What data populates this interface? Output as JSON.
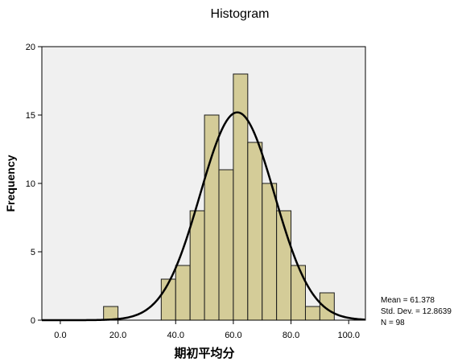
{
  "chart_data": {
    "type": "bar",
    "title": "Histogram",
    "xlabel": "期初平均分",
    "ylabel": "Frequency",
    "xlim": [
      -6.4,
      105.8
    ],
    "ylim": [
      0,
      20
    ],
    "xticks": [
      "0.0",
      "20.0",
      "40.0",
      "60.0",
      "80.0",
      "100.0"
    ],
    "xtick_values": [
      0,
      20,
      40,
      60,
      80,
      100
    ],
    "yticks": [
      "0",
      "5",
      "10",
      "15",
      "20"
    ],
    "ytick_values": [
      0,
      5,
      10,
      15,
      20
    ],
    "bins": [
      {
        "start": 15,
        "end": 20,
        "count": 1
      },
      {
        "start": 35,
        "end": 40,
        "count": 3
      },
      {
        "start": 40,
        "end": 45,
        "count": 4
      },
      {
        "start": 45,
        "end": 50,
        "count": 8
      },
      {
        "start": 50,
        "end": 55,
        "count": 15
      },
      {
        "start": 55,
        "end": 60,
        "count": 11
      },
      {
        "start": 60,
        "end": 65,
        "count": 18
      },
      {
        "start": 65,
        "end": 70,
        "count": 13
      },
      {
        "start": 70,
        "end": 75,
        "count": 10
      },
      {
        "start": 75,
        "end": 80,
        "count": 8
      },
      {
        "start": 80,
        "end": 85,
        "count": 4
      },
      {
        "start": 85,
        "end": 90,
        "count": 1
      },
      {
        "start": 90,
        "end": 95,
        "count": 2
      }
    ],
    "normal_curve": {
      "mean": 61.378,
      "std_dev": 12.8639,
      "n": 98,
      "bin_width": 5
    },
    "stats_text": [
      "Mean = 61.378",
      "Std. Dev. = 12.8639",
      "N = 98"
    ],
    "grid": false,
    "colors": {
      "bar_fill": "#d4cc98",
      "bar_stroke": "#1a1a1a",
      "plot_bg": "#f0f0f0",
      "curve": "#000000"
    }
  }
}
